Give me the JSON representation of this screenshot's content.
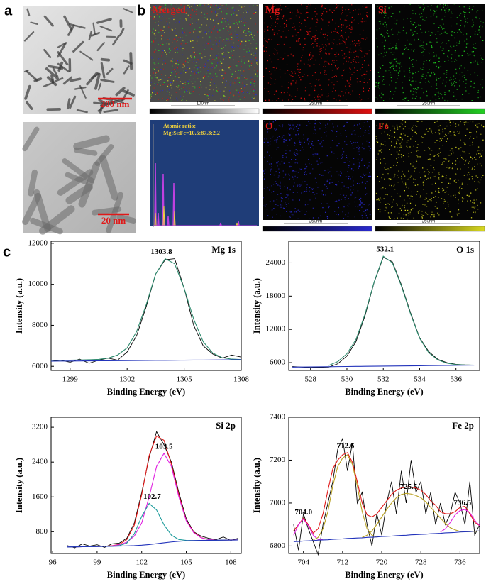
{
  "panel_a": {
    "label": "a",
    "scale_bars": [
      "200 nm",
      "20 nm"
    ]
  },
  "panel_b": {
    "label": "b",
    "maps": [
      {
        "title": "Merged",
        "scale": "100nm"
      },
      {
        "title": "Mg",
        "scale": "250nm",
        "color": "#e01010"
      },
      {
        "title": "Si",
        "scale": "250nm",
        "color": "#22d022"
      },
      {
        "title": "O",
        "scale": "250nm",
        "color": "#2a2ad0"
      },
      {
        "title": "Fe",
        "scale": "250nm",
        "color": "#d8d820"
      }
    ],
    "spectrum": {
      "lines": [
        "Atomic ratio:",
        "Mg:Si:Fe=10.5:87.3:2.2"
      ]
    }
  },
  "panel_c": {
    "label": "c"
  },
  "chart_data": [
    {
      "type": "line",
      "title": "Mg 1s",
      "xlabel": "Binding Energy (eV)",
      "ylabel": "Intensity (a.u.)",
      "x": [
        1298,
        1298.5,
        1299,
        1299.5,
        1300,
        1300.5,
        1301,
        1301.5,
        1302,
        1302.5,
        1303,
        1303.5,
        1304,
        1304.5,
        1305,
        1305.5,
        1306,
        1306.5,
        1307,
        1307.5,
        1308
      ],
      "series": [
        {
          "color": "#000000",
          "values": [
            6250,
            6300,
            6200,
            6350,
            6150,
            6300,
            6400,
            6300,
            6700,
            7500,
            8900,
            10500,
            11200,
            11250,
            9800,
            8000,
            7000,
            6600,
            6400,
            6550,
            6450
          ]
        },
        {
          "color": "#2e8b6e",
          "values": [
            6300,
            6300,
            6300,
            6310,
            6320,
            6340,
            6400,
            6550,
            6900,
            7700,
            9000,
            10500,
            11250,
            11000,
            9800,
            8300,
            7200,
            6650,
            6420,
            6350,
            6330
          ]
        },
        {
          "color": "#2233bb",
          "values": [
            6250,
            6254,
            6257,
            6261,
            6264,
            6268,
            6271,
            6275,
            6278,
            6282,
            6285,
            6289,
            6292,
            6296,
            6299,
            6303,
            6306,
            6310,
            6313,
            6317,
            6320
          ]
        }
      ],
      "xlim": [
        1298,
        1308
      ],
      "xticks": [
        1299,
        1302,
        1305,
        1308
      ],
      "ylim": [
        5800,
        12100
      ],
      "yticks": [
        6000,
        8000,
        10000,
        12000
      ],
      "annotations": [
        1303.8
      ]
    },
    {
      "type": "line",
      "title": "O 1s",
      "xlabel": "Binding Energy (eV)",
      "ylabel": "Intensity (a.u.)",
      "x": [
        527,
        527.5,
        528,
        528.5,
        529,
        529.5,
        530,
        530.5,
        531,
        531.5,
        532,
        532.5,
        533,
        533.5,
        534,
        534.5,
        535,
        535.5,
        536,
        536.5,
        537
      ],
      "series": [
        {
          "color": "#000000",
          "values": [
            5300,
            5200,
            5100,
            5150,
            5200,
            5800,
            7200,
            9800,
            14500,
            20500,
            25000,
            24200,
            20000,
            15000,
            10500,
            8000,
            6600,
            6000,
            5700,
            5600,
            5550
          ]
        },
        {
          "color": "#2e8b6e",
          "values": [
            null,
            null,
            null,
            null,
            5500,
            6200,
            7600,
            10200,
            14800,
            20600,
            25200,
            24000,
            19800,
            14800,
            10400,
            7800,
            6500,
            5900,
            5650,
            5580,
            5560
          ]
        },
        {
          "color": "#2233bb",
          "values": [
            5200,
            5218,
            5235,
            5253,
            5270,
            5288,
            5305,
            5323,
            5340,
            5358,
            5375,
            5393,
            5410,
            5428,
            5445,
            5463,
            5480,
            5498,
            5515,
            5533,
            5550
          ]
        }
      ],
      "xlim": [
        526.8,
        537.3
      ],
      "xticks": [
        528,
        530,
        532,
        534,
        536
      ],
      "ylim": [
        4600,
        27900
      ],
      "yticks": [
        6000,
        12000,
        18000,
        24000
      ],
      "annotations": [
        532.1
      ]
    },
    {
      "type": "line",
      "title": "Si 2p",
      "xlabel": "Binding Energy (eV)",
      "ylabel": "Intensity (a.u.)",
      "x": [
        97,
        97.5,
        98,
        98.5,
        99,
        99.5,
        100,
        100.5,
        101,
        101.5,
        102,
        102.5,
        103,
        103.5,
        104,
        104.5,
        105,
        105.5,
        106,
        106.5,
        107,
        107.5,
        108,
        108.5
      ],
      "series": [
        {
          "color": "#000000",
          "values": [
            480,
            430,
            520,
            470,
            500,
            440,
            520,
            540,
            650,
            1000,
            1700,
            2500,
            3100,
            2800,
            2400,
            1700,
            1100,
            800,
            700,
            650,
            620,
            680,
            600,
            650
          ]
        },
        {
          "color": "#e01818",
          "values": [
            450,
            452,
            455,
            458,
            460,
            466,
            478,
            510,
            620,
            950,
            1650,
            2550,
            3000,
            2900,
            2350,
            1650,
            1060,
            790,
            665,
            622,
            608,
            608,
            610,
            612
          ]
        },
        {
          "color": "#e020e0",
          "values": [
            450,
            452,
            455,
            458,
            460,
            465,
            475,
            500,
            560,
            700,
            1000,
            1600,
            2300,
            2600,
            2300,
            1600,
            1050,
            780,
            660,
            620,
            606,
            606,
            608,
            610
          ]
        },
        {
          "color": "#1a9a9a",
          "values": [
            450,
            452,
            455,
            458,
            460,
            463,
            468,
            480,
            540,
            750,
            1150,
            1450,
            1300,
            960,
            720,
            620,
            600,
            597,
            600,
            602,
            604,
            606,
            608,
            610
          ]
        },
        {
          "color": "#2233bb",
          "values": [
            450,
            452,
            455,
            458,
            460,
            463,
            466,
            470,
            475,
            480,
            490,
            505,
            525,
            545,
            565,
            580,
            590,
            596,
            600,
            602,
            604,
            606,
            608,
            610
          ]
        }
      ],
      "xlim": [
        95.9,
        108.7
      ],
      "xticks": [
        96,
        99,
        102,
        105,
        108
      ],
      "ylim": [
        300,
        3430
      ],
      "yticks": [
        800,
        1600,
        2400,
        3200
      ],
      "annotations": [
        103.5,
        102.7
      ]
    },
    {
      "type": "line",
      "title": "Fe 2p",
      "xlabel": "Binding Energy (eV)",
      "ylabel": "Intensity (a.u.)",
      "x": [
        702,
        703,
        704,
        705,
        706,
        707,
        708,
        709,
        710,
        711,
        712,
        713,
        714,
        715,
        716,
        717,
        718,
        719,
        720,
        721,
        722,
        723,
        724,
        725,
        726,
        727,
        728,
        729,
        730,
        731,
        732,
        733,
        734,
        735,
        736,
        737,
        738,
        739,
        740
      ],
      "series": [
        {
          "color": "#000000",
          "values": [
            6900,
            6780,
            6950,
            6880,
            6820,
            6760,
            6900,
            7000,
            7100,
            7250,
            7300,
            7150,
            7280,
            7000,
            7050,
            6900,
            6800,
            6950,
            6850,
            7000,
            7100,
            6950,
            7150,
            7000,
            7200,
            7050,
            7100,
            6950,
            7050,
            6900,
            7000,
            6900,
            6950,
            7050,
            7000,
            6900,
            7100,
            6850,
            6900
          ]
        },
        {
          "color": "#e01818",
          "values": [
            6870,
            6900,
            6930,
            6900,
            6860,
            6880,
            6950,
            7060,
            7160,
            7200,
            7225,
            7235,
            7190,
            7100,
            7000,
            6945,
            6935,
            6950,
            6980,
            7010,
            7040,
            7060,
            7070,
            7075,
            7075,
            7070,
            7060,
            7040,
            7010,
            6990,
            6960,
            6950,
            6950,
            6960,
            6980,
            6985,
            6950,
            6910,
            6895
          ]
        },
        {
          "color": "#e020e0",
          "values": [
            6850,
            6900,
            6925,
            6895,
            6850,
            6830,
            6829,
            null,
            null,
            null,
            null,
            null,
            null,
            null,
            null,
            null,
            null,
            null,
            null,
            null,
            null,
            null,
            null,
            null,
            null,
            null,
            null,
            null,
            null,
            null,
            null,
            null,
            null,
            null,
            null,
            null,
            null,
            null,
            null
          ]
        },
        {
          "color": "#b8a020",
          "values": [
            null,
            null,
            null,
            null,
            6828,
            6840,
            6880,
            6960,
            7080,
            7170,
            7210,
            7225,
            7180,
            7080,
            6960,
            6880,
            6850,
            6842,
            6846,
            null,
            null,
            null,
            null,
            null,
            null,
            null,
            null,
            null,
            null,
            null,
            null,
            null,
            null,
            null,
            null,
            null,
            null,
            null,
            null
          ]
        },
        {
          "color": "#b8a020",
          "values": [
            null,
            null,
            null,
            null,
            null,
            null,
            null,
            null,
            null,
            null,
            null,
            null,
            null,
            null,
            6840,
            6850,
            6870,
            6900,
            6935,
            6970,
            7000,
            7025,
            7040,
            7045,
            7042,
            7035,
            7025,
            7005,
            6980,
            6955,
            6930,
            6905,
            6885,
            6875,
            6868,
            6866,
            6867,
            6868,
            6870
          ]
        },
        {
          "color": "#e020e0",
          "values": [
            null,
            null,
            null,
            null,
            null,
            null,
            null,
            null,
            null,
            null,
            null,
            null,
            null,
            null,
            null,
            null,
            null,
            null,
            null,
            null,
            null,
            null,
            null,
            null,
            null,
            null,
            null,
            null,
            null,
            null,
            6865,
            6880,
            6910,
            6945,
            6965,
            6970,
            6955,
            6920,
            6895
          ]
        },
        {
          "color": "#2233bb",
          "values": [
            6820,
            6821,
            6823,
            6824,
            6825,
            6827,
            6828,
            6829,
            6831,
            6832,
            6833,
            6835,
            6836,
            6837,
            6838,
            6840,
            6841,
            6842,
            6844,
            6845,
            6846,
            6848,
            6849,
            6850,
            6852,
            6853,
            6854,
            6855,
            6857,
            6858,
            6859,
            6861,
            6862,
            6863,
            6865,
            6866,
            6867,
            6869,
            6870
          ]
        }
      ],
      "xlim": [
        701,
        740
      ],
      "xticks": [
        704,
        712,
        720,
        728,
        736
      ],
      "ylim": [
        6765,
        7400
      ],
      "yticks": [
        6800,
        7000,
        7200,
        7400
      ],
      "annotations": [
        {
          "value": 704,
          "label": "704.0"
        },
        712.6,
        725.5,
        736.5
      ]
    }
  ]
}
